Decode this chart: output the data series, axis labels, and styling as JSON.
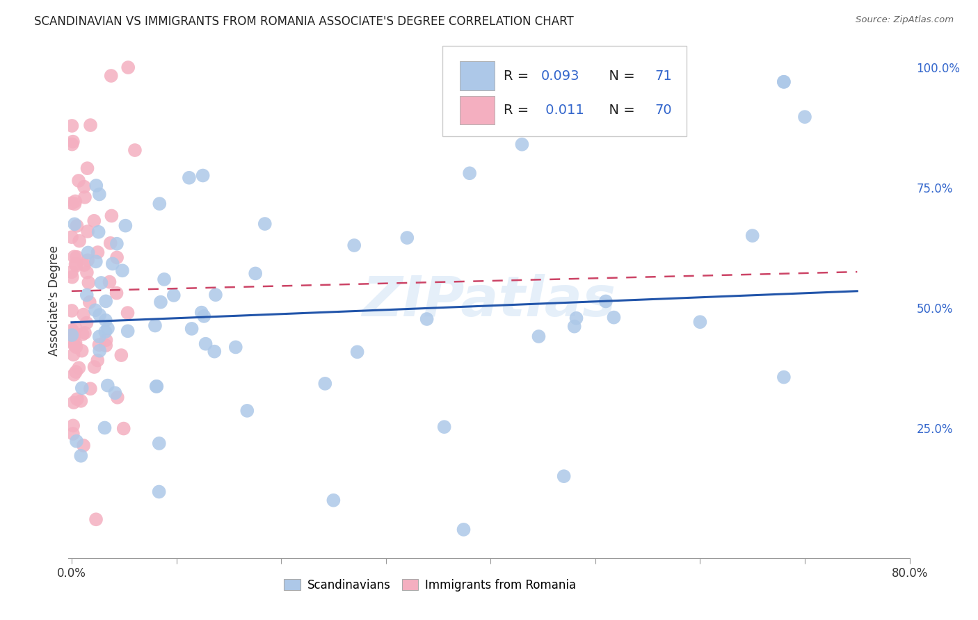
{
  "title": "SCANDINAVIAN VS IMMIGRANTS FROM ROMANIA ASSOCIATE'S DEGREE CORRELATION CHART",
  "source": "Source: ZipAtlas.com",
  "ylabel": "Associate's Degree",
  "right_yticks": [
    "100.0%",
    "75.0%",
    "50.0%",
    "25.0%"
  ],
  "right_ytick_vals": [
    1.0,
    0.75,
    0.5,
    0.25
  ],
  "watermark": "ZIPatlas",
  "blue_color": "#adc8e8",
  "pink_color": "#f4afc0",
  "blue_line_color": "#2255aa",
  "pink_line_color": "#cc4466",
  "background_color": "#ffffff",
  "grid_color": "#cccccc",
  "blue_R": "0.093",
  "blue_N": "71",
  "pink_R": "0.011",
  "pink_N": "70",
  "xlim": [
    0.0,
    0.8
  ],
  "ylim": [
    0.0,
    1.05
  ],
  "blue_line_x0": 0.0,
  "blue_line_x1": 0.75,
  "blue_line_y0": 0.47,
  "blue_line_y1": 0.535,
  "pink_line_x0": 0.0,
  "pink_line_x1": 0.75,
  "pink_line_y0": 0.535,
  "pink_line_y1": 0.575
}
